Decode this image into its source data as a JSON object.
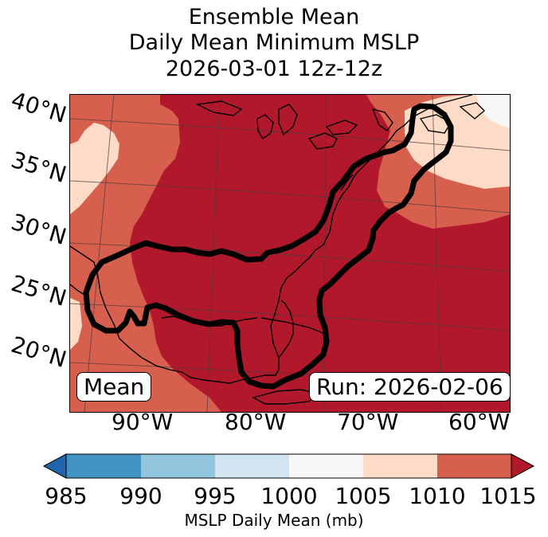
{
  "title": {
    "line1": "Ensemble Mean",
    "line2": "Daily Mean Minimum MSLP",
    "line3": "2026-03-01 12z-12z"
  },
  "map": {
    "lat_labels": [
      "40°N",
      "35°N",
      "30°N",
      "25°N",
      "20°N"
    ],
    "lon_labels": [
      "90°W",
      "80°W",
      "70°W",
      "60°W"
    ],
    "mean_box": "Mean",
    "run_box": "Run: 2026-02-06"
  },
  "colorbar": {
    "ticks": [
      "985",
      "990",
      "995",
      "1000",
      "1005",
      "1010",
      "1015"
    ],
    "label": "MSLP Daily Mean (mb)",
    "colors": [
      "#2166ac",
      "#4393c3",
      "#92c5de",
      "#d1e5f0",
      "#f7f7f7",
      "#fddbc7",
      "#d6604d",
      "#b2182b"
    ]
  }
}
